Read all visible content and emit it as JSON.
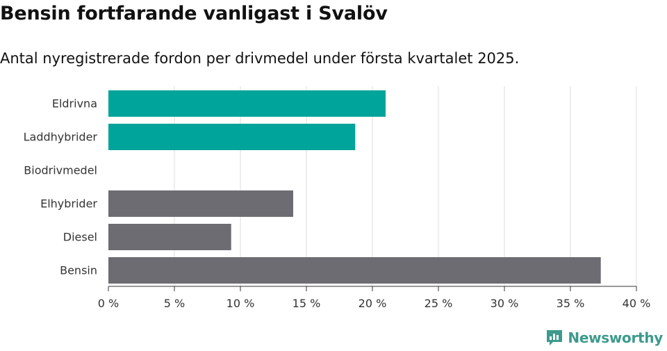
{
  "title": "Bensin fortfarande vanligast i Svalöv",
  "subtitle": "Antal nyregistrerade fordon per drivmedel under första kvartalet 2025.",
  "brand": {
    "name": "Newsworthy",
    "icon": "newsworthy-logo-icon"
  },
  "colors": {
    "highlight": "#00a49a",
    "neutral": "#6d6c72",
    "grid": "#dddddd",
    "axis": "#333333"
  },
  "chart_data": {
    "type": "bar",
    "orientation": "horizontal",
    "categories": [
      "Eldrivna",
      "Laddhybrider",
      "Biodrivmedel",
      "Elhybrider",
      "Diesel",
      "Bensin"
    ],
    "values": [
      21.0,
      18.7,
      0,
      14.0,
      9.3,
      37.3
    ],
    "bar_colors": [
      "#00a49a",
      "#00a49a",
      "#00a49a",
      "#6d6c72",
      "#6d6c72",
      "#6d6c72"
    ],
    "xlim": [
      0,
      40
    ],
    "xticks": [
      0,
      5,
      10,
      15,
      20,
      25,
      30,
      35,
      40
    ],
    "tick_labels": [
      "0 %",
      "5 %",
      "10 %",
      "15 %",
      "20 %",
      "25 %",
      "30 %",
      "35 %",
      "40 %"
    ],
    "grid": true,
    "legend": false
  }
}
